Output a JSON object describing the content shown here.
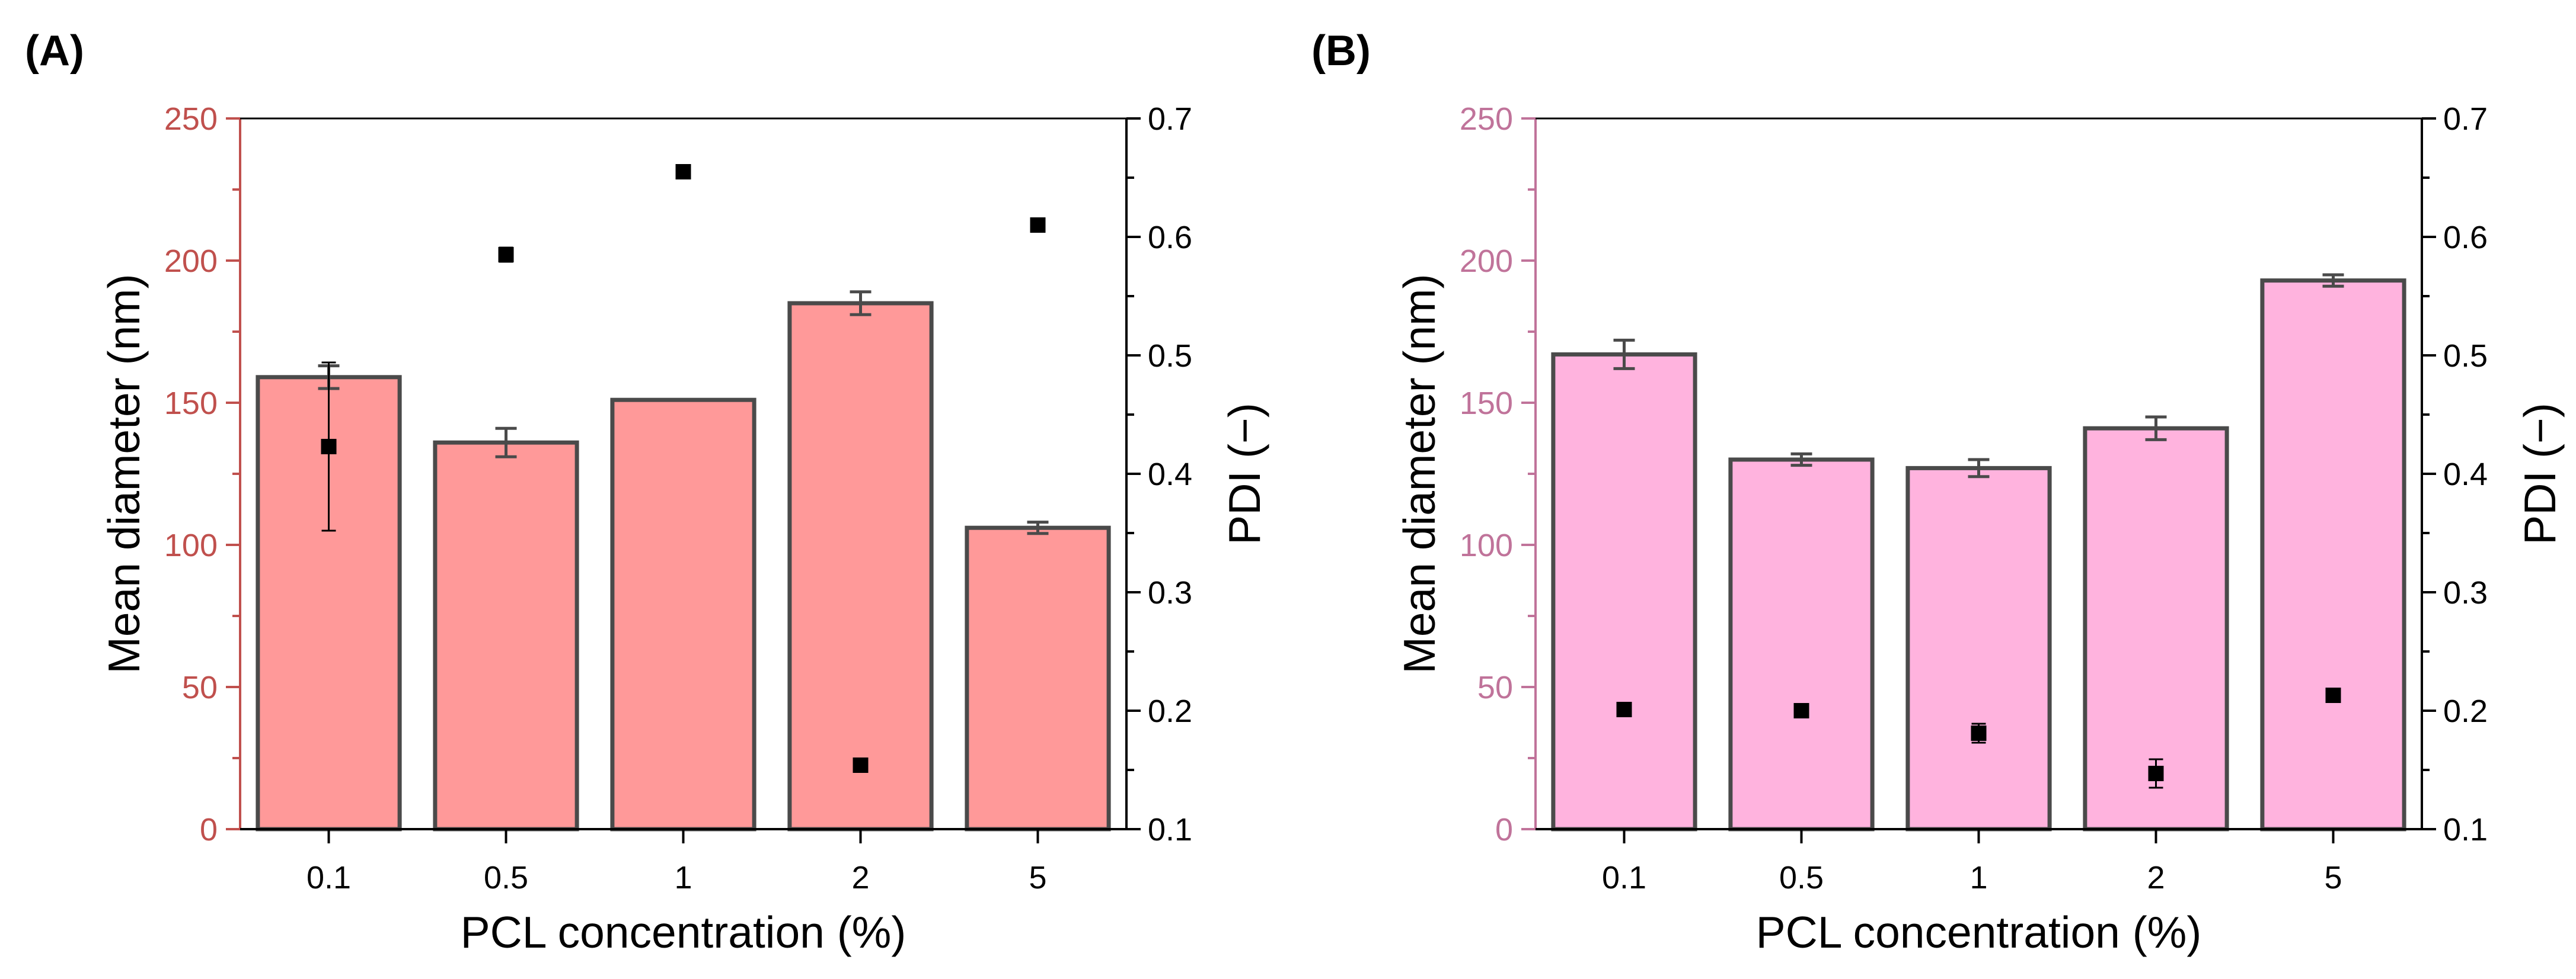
{
  "chart_data": [
    {
      "type": "bar",
      "panel_label": "(A)",
      "categories": [
        "0.1",
        "0.5",
        "1",
        "2",
        "5"
      ],
      "xlabel": "PCL concentration (%)",
      "ylabel": "Mean diameter (nm)",
      "y2label": "PDI (−)",
      "ylim": [
        0,
        250
      ],
      "y2lim": [
        0.1,
        0.7
      ],
      "yticks": [
        "0",
        "50",
        "100",
        "150",
        "200",
        "250"
      ],
      "y2ticks": [
        "0.1",
        "0.2",
        "0.3",
        "0.4",
        "0.5",
        "0.6",
        "0.7"
      ],
      "bar_color": "#ff9999",
      "left_axis_color": "#c0504d",
      "series": [
        {
          "type": "bar",
          "axis": "left",
          "values": [
            159,
            136,
            151,
            185,
            106
          ],
          "errors": [
            4,
            5,
            0,
            4,
            2
          ]
        },
        {
          "type": "scatter",
          "axis": "right",
          "values": [
            0.423,
            0.585,
            0.655,
            0.154,
            0.61
          ],
          "errors": [
            0.071,
            0.006,
            0,
            0.003,
            0.003
          ]
        }
      ]
    },
    {
      "type": "bar",
      "panel_label": "(B)",
      "categories": [
        "0.1",
        "0.5",
        "1",
        "2",
        "5"
      ],
      "xlabel": "PCL concentration (%)",
      "ylabel": "Mean diameter (nm)",
      "y2label": "PDI (−)",
      "ylim": [
        0,
        250
      ],
      "y2lim": [
        0.1,
        0.7
      ],
      "yticks": [
        "0",
        "50",
        "100",
        "150",
        "200",
        "250"
      ],
      "y2ticks": [
        "0.1",
        "0.2",
        "0.3",
        "0.4",
        "0.5",
        "0.6",
        "0.7"
      ],
      "bar_color": "#ffb3de",
      "left_axis_color": "#c0739a",
      "series": [
        {
          "type": "bar",
          "axis": "left",
          "values": [
            167,
            130,
            127,
            141,
            193
          ],
          "errors": [
            5,
            2,
            3,
            4,
            2
          ]
        },
        {
          "type": "scatter",
          "axis": "right",
          "values": [
            0.201,
            0.2,
            0.181,
            0.147,
            0.213
          ],
          "errors": [
            0.002,
            0.002,
            0.008,
            0.012,
            0.005
          ]
        }
      ]
    }
  ]
}
